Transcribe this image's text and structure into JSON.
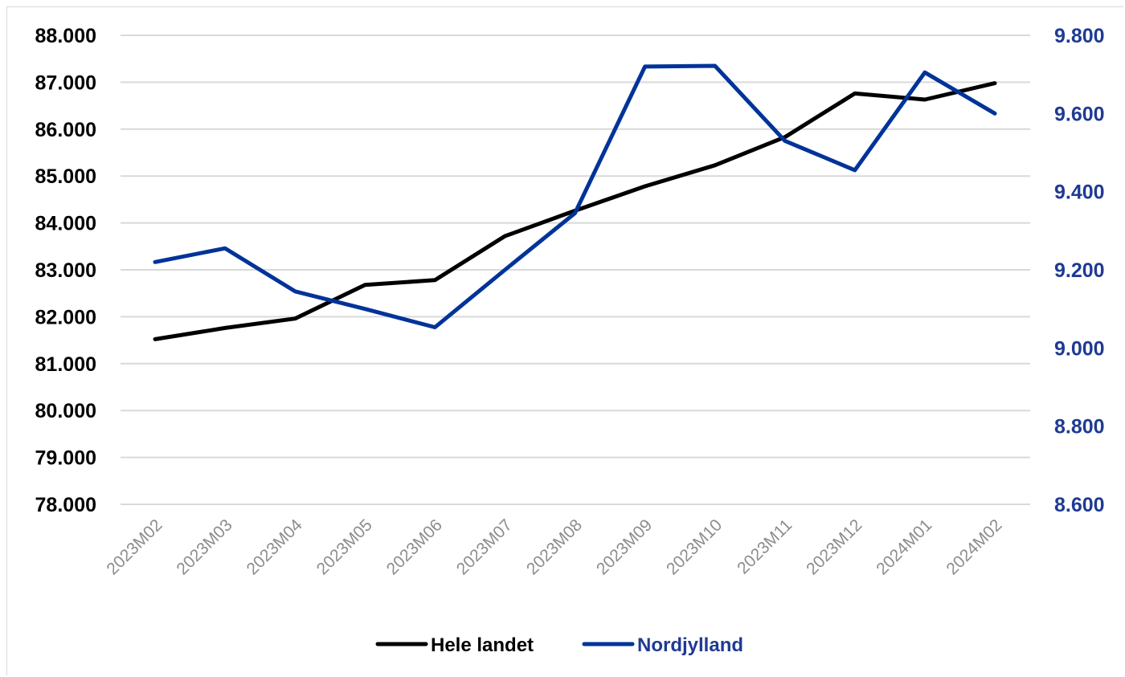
{
  "chart_data": {
    "type": "line",
    "categories": [
      "2023M02",
      "2023M03",
      "2023M04",
      "2023M05",
      "2023M06",
      "2023M07",
      "2023M08",
      "2023M09",
      "2023M10",
      "2023M11",
      "2023M12",
      "2024M01",
      "2024M02"
    ],
    "series": [
      {
        "name": "Hele landet",
        "axis": "left",
        "color": "#000000",
        "values": [
          81520,
          81760,
          81960,
          82680,
          82780,
          83720,
          84260,
          84780,
          85230,
          85830,
          86760,
          86630,
          86980
        ]
      },
      {
        "name": "Nordjylland",
        "axis": "right",
        "color": "#003399",
        "values": [
          9220,
          9255,
          9145,
          9100,
          9053,
          9200,
          9345,
          9720,
          9722,
          9530,
          9455,
          9705,
          9600
        ]
      }
    ],
    "y_left": {
      "min": 78000,
      "max": 88000,
      "step": 1000,
      "ticks": [
        "78.000",
        "79.000",
        "80.000",
        "81.000",
        "82.000",
        "83.000",
        "84.000",
        "85.000",
        "86.000",
        "87.000",
        "88.000"
      ]
    },
    "y_right": {
      "min": 8600,
      "max": 9800,
      "step": 200,
      "color": "#1f3a93",
      "ticks": [
        "8.600",
        "8.800",
        "9.000",
        "9.200",
        "9.400",
        "9.600",
        "9.800"
      ]
    },
    "grid": true,
    "legend": "bottom",
    "gridline_color": "#d9d9d9"
  }
}
